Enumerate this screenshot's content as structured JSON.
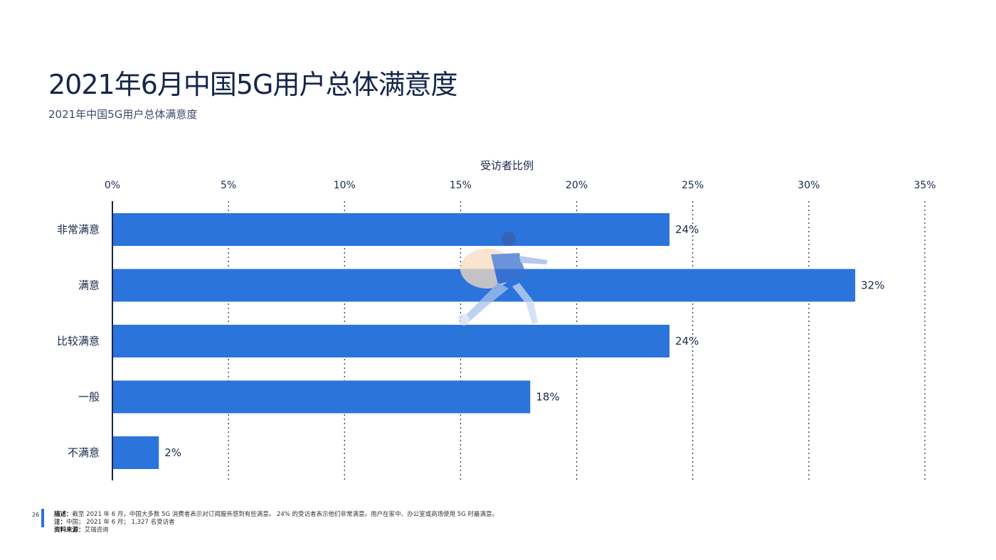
{
  "page": {
    "title": "2021年6月中国5G用户总体满意度",
    "subtitle": "2021年中国5G用户总体满意度",
    "page_number": "26",
    "accent_color": "#2a74dc"
  },
  "footer": {
    "desc_label": "描述：",
    "desc_text": "截至 2021 年 6 月，中国大多数 5G 消费者表示对订阅服务感到有些满意。 24% 的受访者表示他们非常满意。用户在家中、办公室或商场使用 5G 时最满意。",
    "note_label": "注：",
    "note_text": "中国； 2021 年 6 月； 1,327 名受访者",
    "source_label": "资料来源：",
    "source_text": "艾瑞咨询"
  },
  "chart_data": {
    "type": "bar",
    "orientation": "horizontal",
    "xlabel": "受访者比例",
    "x_ticks": [
      "0%",
      "5%",
      "10%",
      "15%",
      "20%",
      "25%",
      "30%",
      "35%"
    ],
    "xlim": [
      0,
      35
    ],
    "categories": [
      "非常满意",
      "满意",
      "比较满意",
      "一般",
      "不满意"
    ],
    "values": [
      24,
      32,
      24,
      18,
      2
    ],
    "value_labels": [
      "24%",
      "32%",
      "24%",
      "18%",
      "2%"
    ],
    "bar_color": "#2a74dc",
    "grid": "vertical dotted"
  }
}
